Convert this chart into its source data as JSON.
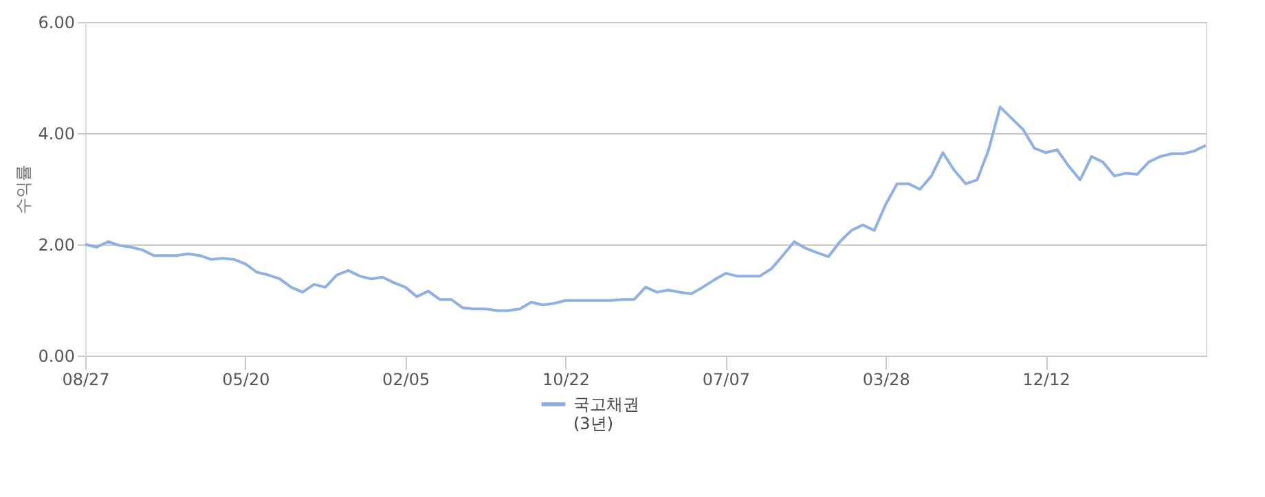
{
  "chart_data": {
    "type": "line",
    "ylabel": "수익률",
    "categories": [
      "08/27",
      null,
      null,
      null,
      null,
      null,
      null,
      null,
      null,
      null,
      null,
      null,
      null,
      null,
      "05/20",
      null,
      null,
      null,
      null,
      null,
      null,
      null,
      null,
      null,
      null,
      null,
      null,
      null,
      "02/05",
      null,
      null,
      null,
      null,
      null,
      null,
      null,
      null,
      null,
      null,
      null,
      null,
      null,
      "10/22",
      null,
      null,
      null,
      null,
      null,
      null,
      null,
      null,
      null,
      null,
      null,
      null,
      null,
      "07/07",
      null,
      null,
      null,
      null,
      null,
      null,
      null,
      null,
      null,
      null,
      null,
      null,
      null,
      "03/28",
      null,
      null,
      null,
      null,
      null,
      null,
      null,
      null,
      null,
      null,
      null,
      null,
      null,
      "12/12",
      null,
      null,
      null,
      null,
      null,
      null,
      null,
      null,
      null,
      null,
      null,
      null,
      null,
      null
    ],
    "series": [
      {
        "name": "국고채권 (3년)",
        "color": "#8eb0e3",
        "values": [
          2.0,
          1.95,
          2.05,
          1.98,
          1.95,
          1.9,
          1.8,
          1.8,
          1.8,
          1.83,
          1.8,
          1.73,
          1.75,
          1.73,
          1.65,
          1.5,
          1.45,
          1.38,
          1.23,
          1.14,
          1.28,
          1.23,
          1.45,
          1.53,
          1.43,
          1.38,
          1.41,
          1.31,
          1.23,
          1.06,
          1.16,
          1.01,
          1.01,
          0.86,
          0.84,
          0.84,
          0.81,
          0.81,
          0.84,
          0.96,
          0.91,
          0.94,
          0.99,
          0.99,
          0.99,
          0.99,
          0.99,
          1.01,
          1.01,
          1.23,
          1.14,
          1.18,
          1.14,
          1.11,
          1.23,
          1.36,
          1.48,
          1.43,
          1.43,
          1.43,
          1.56,
          1.8,
          2.05,
          1.93,
          1.85,
          1.78,
          2.05,
          2.25,
          2.35,
          2.25,
          2.72,
          3.09,
          3.09,
          2.99,
          3.23,
          3.65,
          3.33,
          3.09,
          3.16,
          3.7,
          4.47,
          4.27,
          4.07,
          3.73,
          3.65,
          3.7,
          3.41,
          3.16,
          3.58,
          3.48,
          3.23,
          3.28,
          3.26,
          3.48,
          3.58,
          3.63,
          3.63,
          3.68,
          3.78
        ]
      }
    ],
    "ylim": [
      0,
      6
    ],
    "yticks": [
      {
        "value": 0,
        "label": "0.00"
      },
      {
        "value": 2,
        "label": "2.00"
      },
      {
        "value": 4,
        "label": "4.00"
      },
      {
        "value": 6,
        "label": "6.00"
      }
    ],
    "grid": "y",
    "legend": "bottom",
    "marker": "none",
    "line_style": "solid"
  }
}
